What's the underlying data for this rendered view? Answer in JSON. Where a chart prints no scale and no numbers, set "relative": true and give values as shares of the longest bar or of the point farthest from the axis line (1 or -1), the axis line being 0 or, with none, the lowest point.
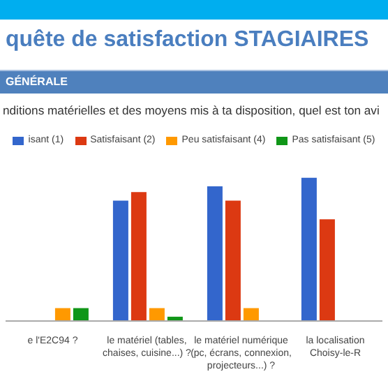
{
  "chart_data": {
    "type": "bar",
    "title": "quête de satisfaction STAGIAIRES",
    "subtitle": "GÉNÉRALE",
    "annotations": [
      "nditions matérielles et des moyens mis à ta disposition, quel est ton avi"
    ],
    "categories": [
      "e l'E2C94 ?",
      "le matériel (tables, chaises, cuisine...) ?",
      "le matériel numérique (pc, écrans, connexion, projecteurs...) ?",
      "la localisation Choisy-le-R"
    ],
    "relative": true,
    "legend": "top",
    "series": [
      {
        "name": "isant (1)",
        "color": "#3366cc",
        "values": [
          null,
          0.84,
          0.94,
          1
        ]
      },
      {
        "name": "Satisfaisant (2)",
        "color": "#dc3912",
        "values": [
          null,
          0.9,
          0.84,
          0.71
        ]
      },
      {
        "name": "Peu satisfaisant (4)",
        "color": "#ff9900",
        "values": [
          0.09,
          0.09,
          0.09,
          null
        ]
      },
      {
        "name": "Pas satisfaisant (5)",
        "color": "#109618",
        "values": [
          0.09,
          0.03,
          0,
          null
        ]
      }
    ]
  }
}
